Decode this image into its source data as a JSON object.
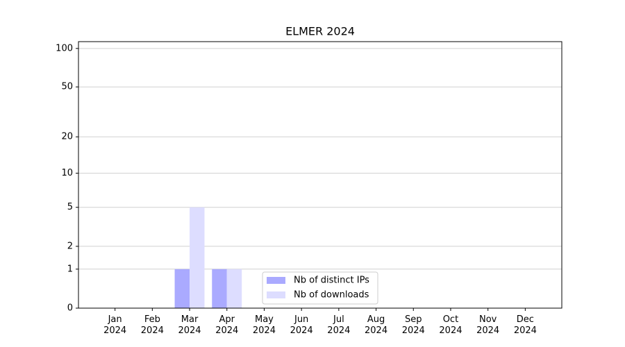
{
  "chart_data": {
    "type": "bar",
    "title": "ELMER 2024",
    "categories": [
      "Jan\n2024",
      "Feb\n2024",
      "Mar\n2024",
      "Apr\n2024",
      "May\n2024",
      "Jun\n2024",
      "Jul\n2024",
      "Aug\n2024",
      "Sep\n2024",
      "Oct\n2024",
      "Nov\n2024",
      "Dec\n2024"
    ],
    "series": [
      {
        "name": "Nb of distinct IPs",
        "color": "#aaaaff",
        "values": [
          0,
          0,
          1,
          1,
          0,
          0,
          0,
          0,
          0,
          0,
          0,
          0
        ]
      },
      {
        "name": "Nb of downloads",
        "color": "#ddddff",
        "values": [
          0,
          0,
          5,
          1,
          0,
          0,
          0,
          0,
          0,
          0,
          0,
          0
        ]
      }
    ],
    "yscale": "log1p",
    "ylim": [
      0,
      113
    ],
    "yticks": [
      0,
      1,
      2,
      5,
      10,
      20,
      50,
      100
    ],
    "grid": true,
    "legend": "lower center"
  }
}
